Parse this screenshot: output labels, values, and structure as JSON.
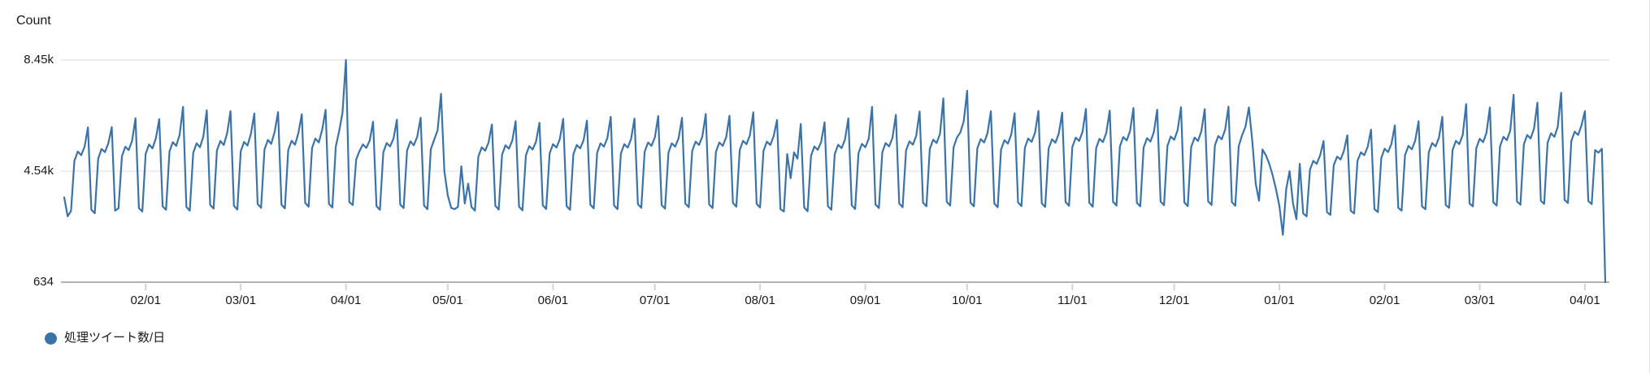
{
  "chart_data": {
    "type": "line",
    "title": "Count",
    "grid": "horizontal",
    "legend_position": "bottom-left",
    "y_axis": {
      "ticks": [
        {
          "label": "8.45k",
          "value": 8450
        },
        {
          "label": "4.54k",
          "value": 4540
        },
        {
          "label": "634",
          "value": 634
        }
      ]
    },
    "x_axis": {
      "tick_labels": [
        {
          "label": "02/01",
          "day": 24
        },
        {
          "label": "03/01",
          "day": 52
        },
        {
          "label": "04/01",
          "day": 83
        },
        {
          "label": "05/01",
          "day": 113
        },
        {
          "label": "06/01",
          "day": 144
        },
        {
          "label": "07/01",
          "day": 174
        },
        {
          "label": "08/01",
          "day": 205
        },
        {
          "label": "09/01",
          "day": 236
        },
        {
          "label": "10/01",
          "day": 266
        },
        {
          "label": "11/01",
          "day": 297
        },
        {
          "label": "12/01",
          "day": 327
        },
        {
          "label": "01/01",
          "day": 358
        },
        {
          "label": "02/01",
          "day": 389
        },
        {
          "label": "03/01",
          "day": 417
        },
        {
          "label": "04/01",
          "day": 448
        }
      ]
    },
    "series": [
      {
        "name": "処理ツイート数/日",
        "color": "#3B73A9",
        "values": [
          3620,
          2950,
          3140,
          4900,
          5230,
          5100,
          5400,
          6080,
          3180,
          3060,
          4980,
          5320,
          5210,
          5520,
          6090,
          3150,
          3230,
          5060,
          5400,
          5280,
          5610,
          6400,
          3240,
          3120,
          5150,
          5480,
          5340,
          5700,
          6370,
          3300,
          3180,
          5230,
          5560,
          5430,
          5820,
          6800,
          3280,
          3150,
          5180,
          5520,
          5380,
          5760,
          6680,
          3350,
          3220,
          5270,
          5600,
          5460,
          5880,
          6650,
          3320,
          3190,
          5240,
          5570,
          5440,
          5850,
          6570,
          3380,
          3250,
          5300,
          5640,
          5500,
          5920,
          6620,
          3360,
          3230,
          5280,
          5610,
          5470,
          5890,
          6540,
          3420,
          3290,
          5350,
          5690,
          5550,
          6000,
          6700,
          3390,
          3260,
          5400,
          5950,
          6600,
          8450,
          3450,
          3350,
          4950,
          5250,
          5480,
          5360,
          5620,
          6280,
          3310,
          3180,
          5200,
          5530,
          5410,
          5680,
          6350,
          3360,
          3240,
          5260,
          5590,
          5450,
          5750,
          6420,
          3330,
          3200,
          5310,
          5650,
          5980,
          7260,
          4540,
          3690,
          3250,
          3200,
          3280,
          4710,
          3400,
          4100,
          3280,
          3150,
          5050,
          5380,
          5260,
          5540,
          6180,
          3320,
          3190,
          5120,
          5450,
          5330,
          5620,
          6300,
          3290,
          3160,
          5090,
          5420,
          5300,
          5580,
          6240,
          3340,
          3210,
          5160,
          5490,
          5370,
          5660,
          6380,
          3310,
          3180,
          5130,
          5460,
          5340,
          5630,
          6320,
          3360,
          3230,
          5190,
          5520,
          5400,
          5700,
          6450,
          3330,
          3200,
          5160,
          5490,
          5370,
          5670,
          6390,
          3380,
          3250,
          5220,
          5550,
          5430,
          5730,
          6480,
          3350,
          3220,
          5190,
          5520,
          5400,
          5700,
          6420,
          3400,
          3270,
          5250,
          5580,
          5460,
          5760,
          6550,
          3370,
          3240,
          5220,
          5550,
          5430,
          5730,
          6490,
          3420,
          3290,
          5280,
          5610,
          5490,
          5800,
          6610,
          3390,
          3260,
          5250,
          5580,
          5460,
          5770,
          6340,
          3200,
          3120,
          5140,
          4290,
          5200,
          4980,
          6200,
          3260,
          3130,
          5080,
          5410,
          5290,
          5570,
          6260,
          3310,
          3180,
          5140,
          5470,
          5350,
          5640,
          6400,
          3340,
          3210,
          5170,
          5500,
          5380,
          5680,
          6800,
          3370,
          3240,
          5200,
          5530,
          5410,
          5710,
          6520,
          3400,
          3270,
          5260,
          5590,
          5470,
          5780,
          6640,
          3430,
          3300,
          5320,
          5650,
          5530,
          5850,
          7100,
          3460,
          3330,
          5380,
          5720,
          5900,
          6300,
          7370,
          3430,
          3300,
          5340,
          5670,
          5550,
          5870,
          6650,
          3400,
          3270,
          5300,
          5630,
          5510,
          5830,
          6580,
          3440,
          3310,
          5360,
          5690,
          5570,
          5890,
          6660,
          3410,
          3280,
          5330,
          5660,
          5540,
          5860,
          6600,
          3450,
          3320,
          5390,
          5720,
          5600,
          5930,
          6730,
          3420,
          3290,
          5350,
          5680,
          5560,
          5890,
          6670,
          3460,
          3330,
          5410,
          5740,
          5620,
          5950,
          6760,
          3430,
          3300,
          5370,
          5700,
          5580,
          5910,
          6700,
          3470,
          3340,
          5430,
          5760,
          5640,
          5980,
          6790,
          3440,
          3310,
          5390,
          5720,
          5600,
          5940,
          6720,
          3480,
          3350,
          5450,
          5780,
          5660,
          6000,
          6810,
          3450,
          3320,
          5420,
          5800,
          6100,
          6780,
          5600,
          4100,
          3500,
          5300,
          5100,
          4800,
          4400,
          3900,
          3300,
          2300,
          3900,
          4540,
          3400,
          2850,
          4800,
          3050,
          2950,
          4600,
          4900,
          4800,
          5100,
          5600,
          3100,
          3000,
          4750,
          5050,
          4950,
          5250,
          5800,
          3150,
          3050,
          4900,
          5200,
          5100,
          5400,
          6000,
          3200,
          3100,
          5000,
          5330,
          5210,
          5500,
          6150,
          3250,
          3150,
          5100,
          5430,
          5310,
          5610,
          6300,
          3300,
          3200,
          5200,
          5530,
          5410,
          5720,
          6450,
          3350,
          3250,
          5280,
          5610,
          5490,
          5810,
          6900,
          3400,
          3300,
          5350,
          5680,
          5560,
          5890,
          6780,
          3440,
          3330,
          5420,
          5750,
          5630,
          5970,
          7230,
          3470,
          3360,
          5480,
          5810,
          5690,
          6030,
          6950,
          3500,
          3390,
          5540,
          5870,
          5750,
          6100,
          7300,
          3530,
          3420,
          5600,
          5930,
          5810,
          6160,
          6650,
          3490,
          3380,
          5280,
          5190,
          5330,
          634
        ]
      }
    ]
  },
  "colors": {
    "background": "#ffffff",
    "grid": "#ededed",
    "axis": "#b2b2b2",
    "tick": "#d4d4d4",
    "text": "#16191f",
    "border": "#e8e8e8"
  }
}
